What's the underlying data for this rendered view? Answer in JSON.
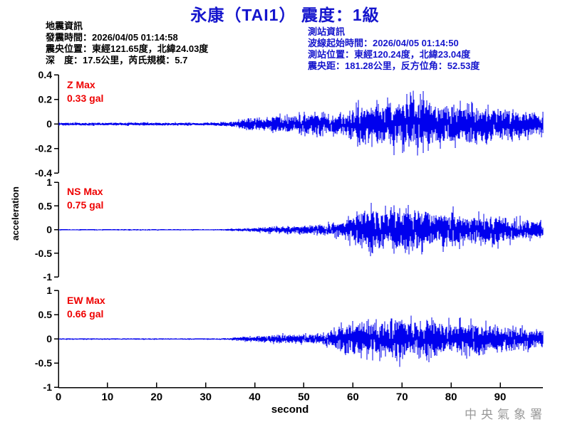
{
  "title": "永康（TAI1） 震度：1級",
  "quake_info": {
    "heading": "地震資訊",
    "origin_time": "發震時間：2026/04/05 01:14:58",
    "epicenter": "震央位置：東經121.65度，北緯24.03度",
    "depth_magnitude": "深　度：17.5公里，芮氏規模：5.7"
  },
  "station_info": {
    "heading": "測站資訊",
    "wave_start_time": "波線起始時間：2026/04/05 01:14:50",
    "station_location": "測站位置：東經120.24度，北緯23.04度",
    "epicentral_distance": "震央距：181.28公里，反方位角：52.53度"
  },
  "watermark": "中央氣象署",
  "colors": {
    "title_blue": "#1515cd",
    "trace_blue": "#0000ee",
    "max_label_red": "#ee0000",
    "axis_black": "#000000",
    "watermark_gray": "#9a9a9a"
  },
  "chart_data": {
    "type": "line",
    "title": "永康（TAI1） 震度：1級",
    "xlabel": "second",
    "ylabel": "acceleration",
    "x_ticks": [
      0,
      10,
      20,
      30,
      40,
      50,
      60,
      70,
      80,
      90
    ],
    "x_range": [
      0,
      98.5
    ],
    "grid": false,
    "panels": [
      {
        "name": "Z",
        "max_label_line1": "Z Max",
        "max_label_line2": "0.33 gal",
        "max_gal": 0.33,
        "ylim": [
          -0.4,
          0.4
        ],
        "ytick_labels": [
          "0.4",
          "0.2",
          "0",
          "-0.2",
          "-0.4"
        ],
        "ytick_values": [
          0.4,
          0.2,
          0,
          -0.2,
          -0.4
        ],
        "p_arrival_s": 38,
        "envelope_t": [
          0,
          30,
          33,
          36,
          38,
          40,
          44,
          48,
          52,
          55,
          58,
          60,
          63,
          66,
          70,
          73,
          76,
          80,
          84,
          88,
          92,
          95,
          98.5
        ],
        "envelope_gal": [
          0.015,
          0.015,
          0.02,
          0.03,
          0.07,
          0.08,
          0.09,
          0.1,
          0.13,
          0.11,
          0.12,
          0.2,
          0.22,
          0.25,
          0.28,
          0.33,
          0.25,
          0.22,
          0.25,
          0.2,
          0.18,
          0.15,
          0.12
        ]
      },
      {
        "name": "NS",
        "max_label_line1": "NS Max",
        "max_label_line2": "0.75 gal",
        "max_gal": 0.75,
        "ylim": [
          -1,
          1
        ],
        "ytick_labels": [
          "1",
          "0.5",
          "0",
          "-0.5",
          "-1"
        ],
        "ytick_values": [
          1,
          0.5,
          0,
          -0.5,
          -1
        ],
        "p_arrival_s": 38,
        "envelope_t": [
          0,
          33,
          36,
          40,
          44,
          48,
          52,
          55,
          58,
          60,
          62,
          64,
          66,
          68,
          71,
          74,
          77,
          80,
          83,
          86,
          89,
          92,
          95,
          98.5
        ],
        "envelope_gal": [
          0.012,
          0.012,
          0.03,
          0.06,
          0.1,
          0.12,
          0.14,
          0.18,
          0.25,
          0.45,
          0.6,
          0.75,
          0.55,
          0.6,
          0.65,
          0.6,
          0.5,
          0.55,
          0.45,
          0.4,
          0.45,
          0.35,
          0.3,
          0.25
        ]
      },
      {
        "name": "EW",
        "max_label_line1": "EW Max",
        "max_label_line2": "0.66 gal",
        "max_gal": 0.66,
        "ylim": [
          -1,
          1
        ],
        "ytick_labels": [
          "1",
          "0.5",
          "0",
          "-0.5",
          "-1"
        ],
        "ytick_values": [
          1,
          0.5,
          0,
          -0.5,
          -1
        ],
        "p_arrival_s": 38,
        "envelope_t": [
          0,
          33,
          36,
          40,
          44,
          47,
          50,
          53,
          56,
          58,
          60,
          63,
          66,
          69,
          72,
          75,
          78,
          81,
          84,
          87,
          90,
          93,
          96,
          98.5
        ],
        "envelope_gal": [
          0.012,
          0.012,
          0.04,
          0.08,
          0.12,
          0.14,
          0.12,
          0.15,
          0.25,
          0.45,
          0.5,
          0.45,
          0.55,
          0.66,
          0.55,
          0.6,
          0.5,
          0.45,
          0.55,
          0.5,
          0.4,
          0.35,
          0.3,
          0.25
        ]
      }
    ]
  }
}
